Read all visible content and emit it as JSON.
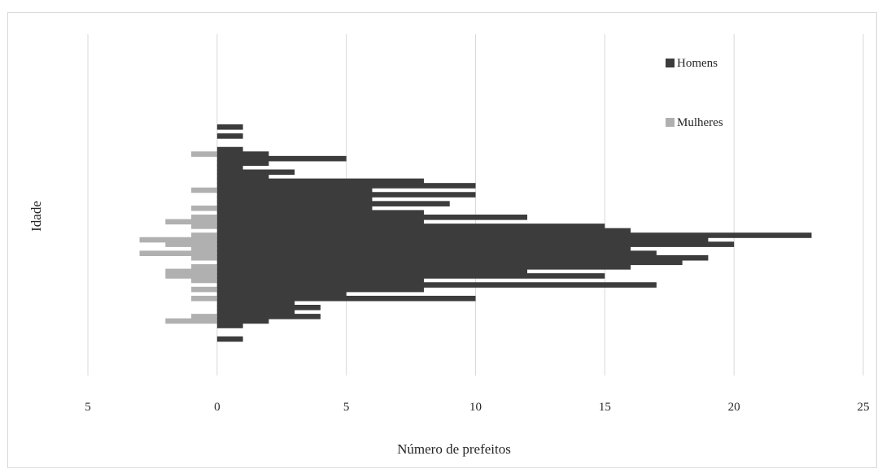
{
  "chart_data": {
    "type": "bar",
    "orientation": "horizontal",
    "title": "",
    "xlabel": "Número de prefeitos",
    "ylabel": "Idade",
    "xlim": [
      -5,
      25
    ],
    "xticks": [
      -5,
      0,
      5,
      10,
      15,
      20,
      25
    ],
    "xtick_labels": [
      "5",
      "0",
      "5",
      "10",
      "15",
      "20",
      "25"
    ],
    "grid": "vertical",
    "legend_position": "top-right",
    "colors": {
      "Homens": "#3c3c3c",
      "Mulheres": "#b0b0b0"
    },
    "series": [
      {
        "name": "Homens",
        "values": [
          1,
          0,
          1,
          0,
          0,
          1,
          2,
          5,
          2,
          1,
          3,
          2,
          8,
          10,
          6,
          10,
          6,
          9,
          6,
          8,
          12,
          8,
          15,
          16,
          23,
          19,
          20,
          16,
          17,
          19,
          18,
          16,
          12,
          15,
          8,
          17,
          8,
          5,
          10,
          3,
          4,
          3,
          4,
          2,
          1,
          0,
          0,
          1
        ]
      },
      {
        "name": "Mulheres",
        "values": [
          0,
          0,
          0,
          0,
          0,
          0,
          1,
          0,
          0,
          0,
          0,
          0,
          0,
          0,
          1,
          0,
          0,
          0,
          1,
          0,
          1,
          2,
          1,
          0,
          1,
          3,
          2,
          1,
          3,
          1,
          0,
          1,
          2,
          2,
          1,
          0,
          1,
          0,
          1,
          0,
          0,
          0,
          1,
          2,
          0,
          0,
          0,
          0
        ]
      }
    ],
    "legend": [
      {
        "name": "Homens",
        "color": "#3c3c3c"
      },
      {
        "name": "Mulheres",
        "color": "#b0b0b0"
      }
    ]
  }
}
